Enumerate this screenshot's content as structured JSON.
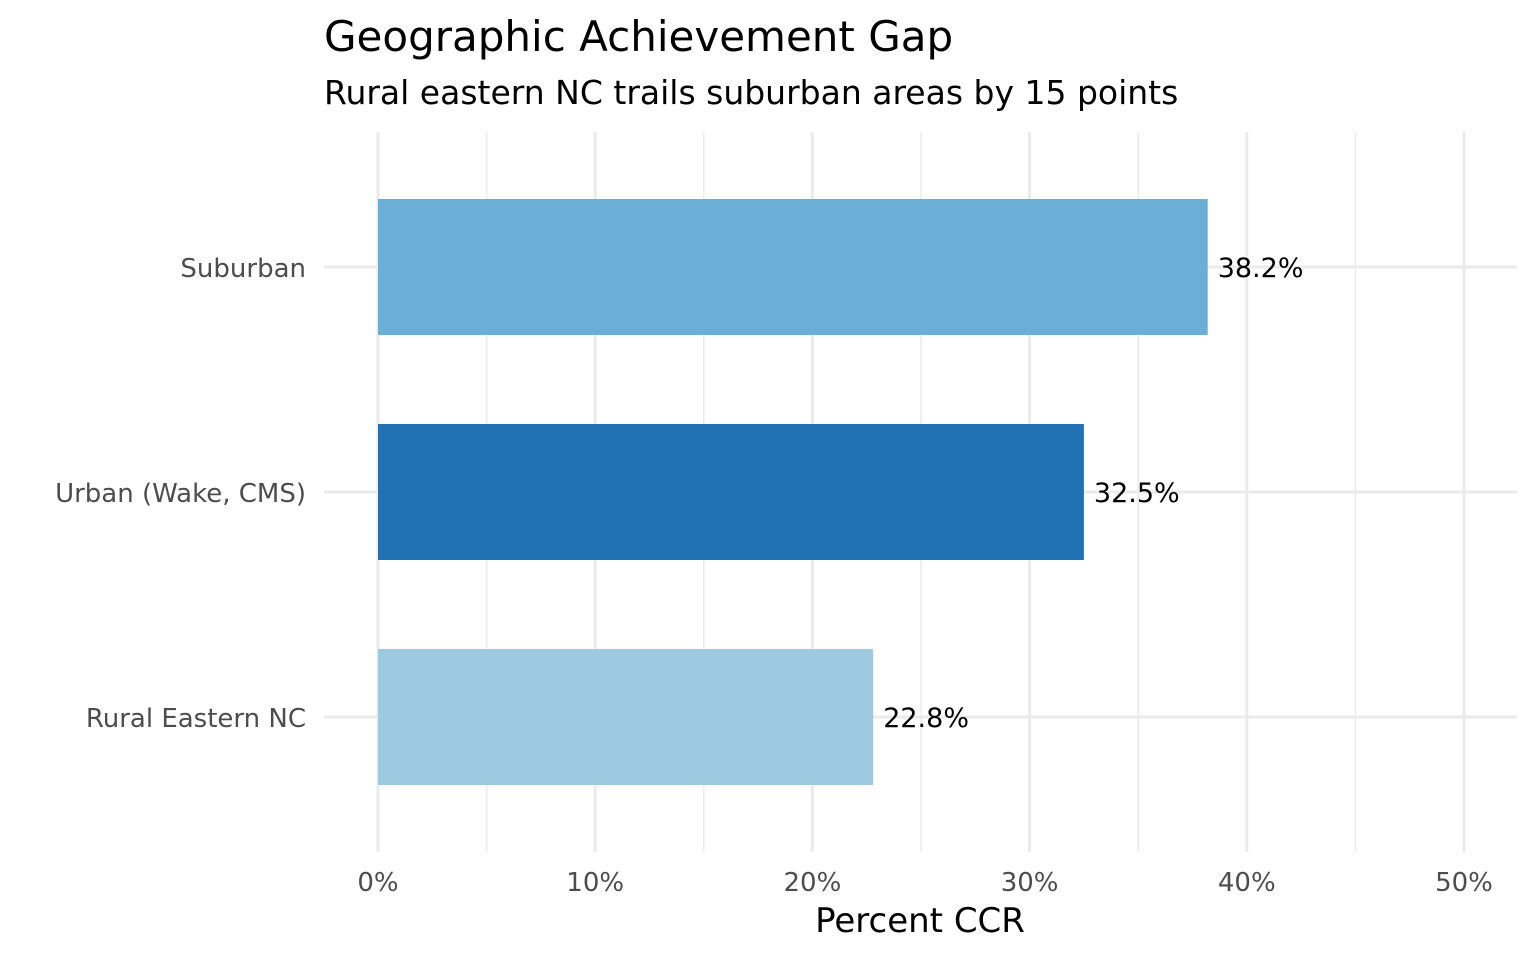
{
  "chart_data": {
    "type": "bar",
    "orientation": "horizontal",
    "title": "Geographic Achievement Gap",
    "subtitle": "Rural eastern NC trails suburban areas by 15 points",
    "xlabel": "Percent CCR",
    "ylabel": "",
    "categories": [
      "Suburban",
      "Urban (Wake, CMS)",
      "Rural Eastern NC"
    ],
    "values": [
      38.2,
      32.5,
      22.8
    ],
    "data_labels": [
      "38.2%",
      "32.5%",
      "22.8%"
    ],
    "colors": [
      "#6baed6",
      "#2171b5",
      "#9ecae1"
    ],
    "xlim": [
      0,
      50
    ],
    "x_ticks": [
      0,
      10,
      20,
      30,
      40,
      50
    ],
    "x_tick_labels": [
      "0%",
      "10%",
      "20%",
      "30%",
      "40%",
      "50%"
    ],
    "grid": true,
    "legend": "none"
  }
}
